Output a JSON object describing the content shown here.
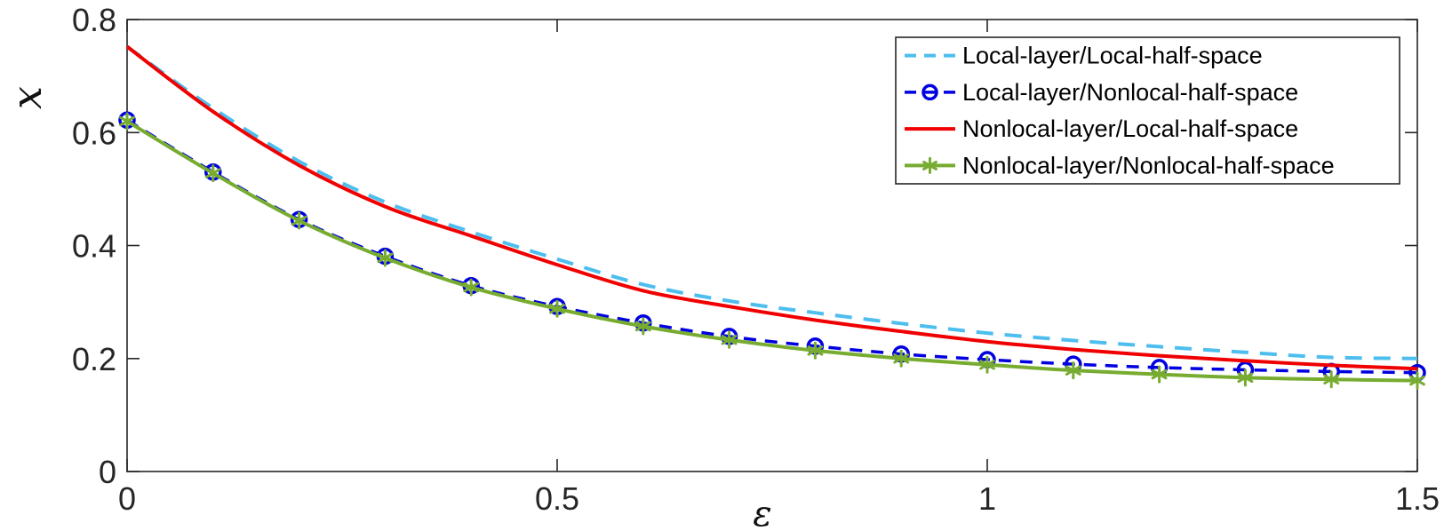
{
  "chart_data": {
    "type": "line",
    "title": "",
    "xlabel": "ε",
    "ylabel": "x",
    "xlim": [
      0,
      1.5
    ],
    "ylim": [
      0,
      0.8
    ],
    "xticks": {
      "values": [
        0,
        0.5,
        1,
        1.5
      ],
      "labels": [
        "0",
        "0.5",
        "1",
        "1.5"
      ]
    },
    "yticks": {
      "values": [
        0,
        0.2,
        0.4,
        0.6,
        0.8
      ],
      "labels": [
        "0",
        "0.2",
        "0.4",
        "0.6",
        "0.8"
      ]
    },
    "grid": false,
    "axis_color": "#262626",
    "background_color": "#ffffff",
    "legend": {
      "position": "top-right",
      "border_color": "#262626",
      "fill": "#ffffff"
    },
    "x": [
      0,
      0.1,
      0.2,
      0.3,
      0.4,
      0.5,
      0.6,
      0.7,
      0.8,
      0.9,
      1.0,
      1.1,
      1.2,
      1.3,
      1.4,
      1.5
    ],
    "series": [
      {
        "name": "Local-layer/Local-half-space",
        "color": "#4DBEEE",
        "line_style": "dashed",
        "marker": "none",
        "line_width": 4,
        "values": [
          0.752,
          0.643,
          0.549,
          0.477,
          0.424,
          0.376,
          0.331,
          0.302,
          0.281,
          0.262,
          0.245,
          0.232,
          0.221,
          0.211,
          0.202,
          0.2
        ]
      },
      {
        "name": "Local-layer/Nonlocal-half-space",
        "color": "#0000E1",
        "line_style": "dashed",
        "marker": "circle",
        "line_width": 3.5,
        "values": [
          0.622,
          0.53,
          0.446,
          0.381,
          0.329,
          0.292,
          0.263,
          0.239,
          0.222,
          0.208,
          0.198,
          0.19,
          0.184,
          0.18,
          0.177,
          0.175
        ]
      },
      {
        "name": "Nonlocal-layer/Local-half-space",
        "color": "#F00000",
        "line_style": "solid",
        "marker": "none",
        "line_width": 4,
        "values": [
          0.752,
          0.637,
          0.542,
          0.469,
          0.417,
          0.366,
          0.32,
          0.292,
          0.268,
          0.248,
          0.23,
          0.216,
          0.205,
          0.196,
          0.188,
          0.182
        ]
      },
      {
        "name": "Nonlocal-layer/Nonlocal-half-space",
        "color": "#77AC30",
        "line_style": "solid",
        "marker": "asterisk",
        "line_width": 4,
        "values": [
          0.62,
          0.528,
          0.444,
          0.378,
          0.326,
          0.288,
          0.257,
          0.233,
          0.214,
          0.2,
          0.189,
          0.179,
          0.172,
          0.166,
          0.163,
          0.161
        ]
      }
    ]
  }
}
